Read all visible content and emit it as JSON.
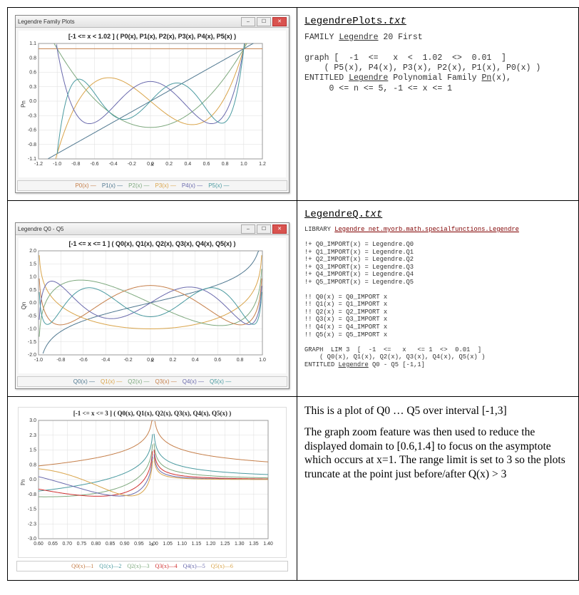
{
  "row1": {
    "titlebar": "Legendre Family Plots",
    "plot_title": "[-1 <= x < 1.02 ] ( P0(x), P1(x), P2(x), P3(x), P4(x), P5(x) )",
    "legend_items": [
      "P0(x) —",
      "P1(x) —",
      "P2(x) —",
      "P3(x) —",
      "P4(x) —",
      "P5(x) —"
    ],
    "x_label": "x",
    "y_label": "Pn",
    "xlim": [
      -1.2,
      1.2
    ],
    "ylim": [
      -1.1,
      1.1
    ],
    "xtick_step": 0.2,
    "series_colors": [
      "#c57f4a",
      "#507890",
      "#7da87d",
      "#d9a44a",
      "#6a6aad",
      "#4a9aa0"
    ],
    "background": "#ffffff",
    "file_title": "LegendrePlots.",
    "file_ext": "txt",
    "code": "FAMILY Legendre 20 First\n\ngraph [  -1  <=   x  <  1.02  <>  0.01  ]\n    ( P5(x), P4(x), P3(x), P2(x), P1(x), P0(x) )\nENTITLED Legendre Polynomial Family Pn(x),\n     0 <= n <= 5, -1 <= x <= 1"
  },
  "row2": {
    "titlebar": "Legendre Q0 - Q5",
    "plot_title": "[-1 <= x <= 1 ] ( Q0(x), Q1(x), Q2(x), Q3(x), Q4(x), Q5(x) )",
    "legend_items": [
      "Q0(x) —",
      "Q1(x) —",
      "Q2(x) —",
      "Q3(x) —",
      "Q4(x) —",
      "Q5(x) —"
    ],
    "x_label": "x",
    "y_label": "Qn",
    "xlim": [
      -1.0,
      1.0
    ],
    "ylim": [
      -2.0,
      2.0
    ],
    "series_colors": [
      "#507890",
      "#d9a44a",
      "#7da87d",
      "#c57f4a",
      "#6a6aad",
      "#4a9aa0"
    ],
    "file_title": "LegendreQ.",
    "file_ext": "txt",
    "lib_line_prefix": "LIBRARY ",
    "lib_link": "Legendre net.myorb.math.specialfunctions.Legendre",
    "code": "!+ Q0_IMPORT(x) = Legendre.Q0\n!+ Q1_IMPORT(x) = Legendre.Q1\n!+ Q2_IMPORT(x) = Legendre.Q2\n!+ Q3_IMPORT(x) = Legendre.Q3\n!+ Q4_IMPORT(x) = Legendre.Q4\n!+ Q5_IMPORT(x) = Legendre.Q5\n\n!! Q0(x) = Q0_IMPORT x\n!! Q1(x) = Q1_IMPORT x\n!! Q2(x) = Q2_IMPORT x\n!! Q3(x) = Q3_IMPORT x\n!! Q4(x) = Q4_IMPORT x\n!! Q5(x) = Q5_IMPORT x\n\nGRAPH  LIM 3  [  -1  <=   x   <= 1  <>  0.01  ]\n    ( Q0(x), Q1(x), Q2(x), Q3(x), Q4(x), Q5(x) )\nENTITLED Legendre Q0 - Q5 [-1,1]"
  },
  "row3": {
    "plot_title": "[-1 <= x <= 3 ] ( Q0(x), Q1(x), Q2(x), Q3(x), Q4(x), Q5(x) )",
    "legend_items": [
      "Q0(x)—1",
      "Q1(x)—2",
      "Q2(x)—3",
      "Q3(x)—4",
      "Q4(x)—5",
      "Q5(x)—6"
    ],
    "x_label": "x",
    "y_label": "Pn",
    "xlim": [
      0.6,
      1.4
    ],
    "ylim": [
      -3.0,
      3.0
    ],
    "xtick_step": 0.05,
    "series_colors": [
      "#c57f4a",
      "#4a9aa0",
      "#7da87d",
      "#d03030",
      "#6a6aad",
      "#d9a44a"
    ],
    "para1": "This is a plot of Q0 … Q5 over interval [-1,3]",
    "para2": "The graph zoom feature was then used to reduce the displayed domain to [0.6,1.4] to focus on the asymptote which occurs at x=1.  The range limit is set to 3 so the plots truncate at the point just before/after Q(x) > 3"
  }
}
